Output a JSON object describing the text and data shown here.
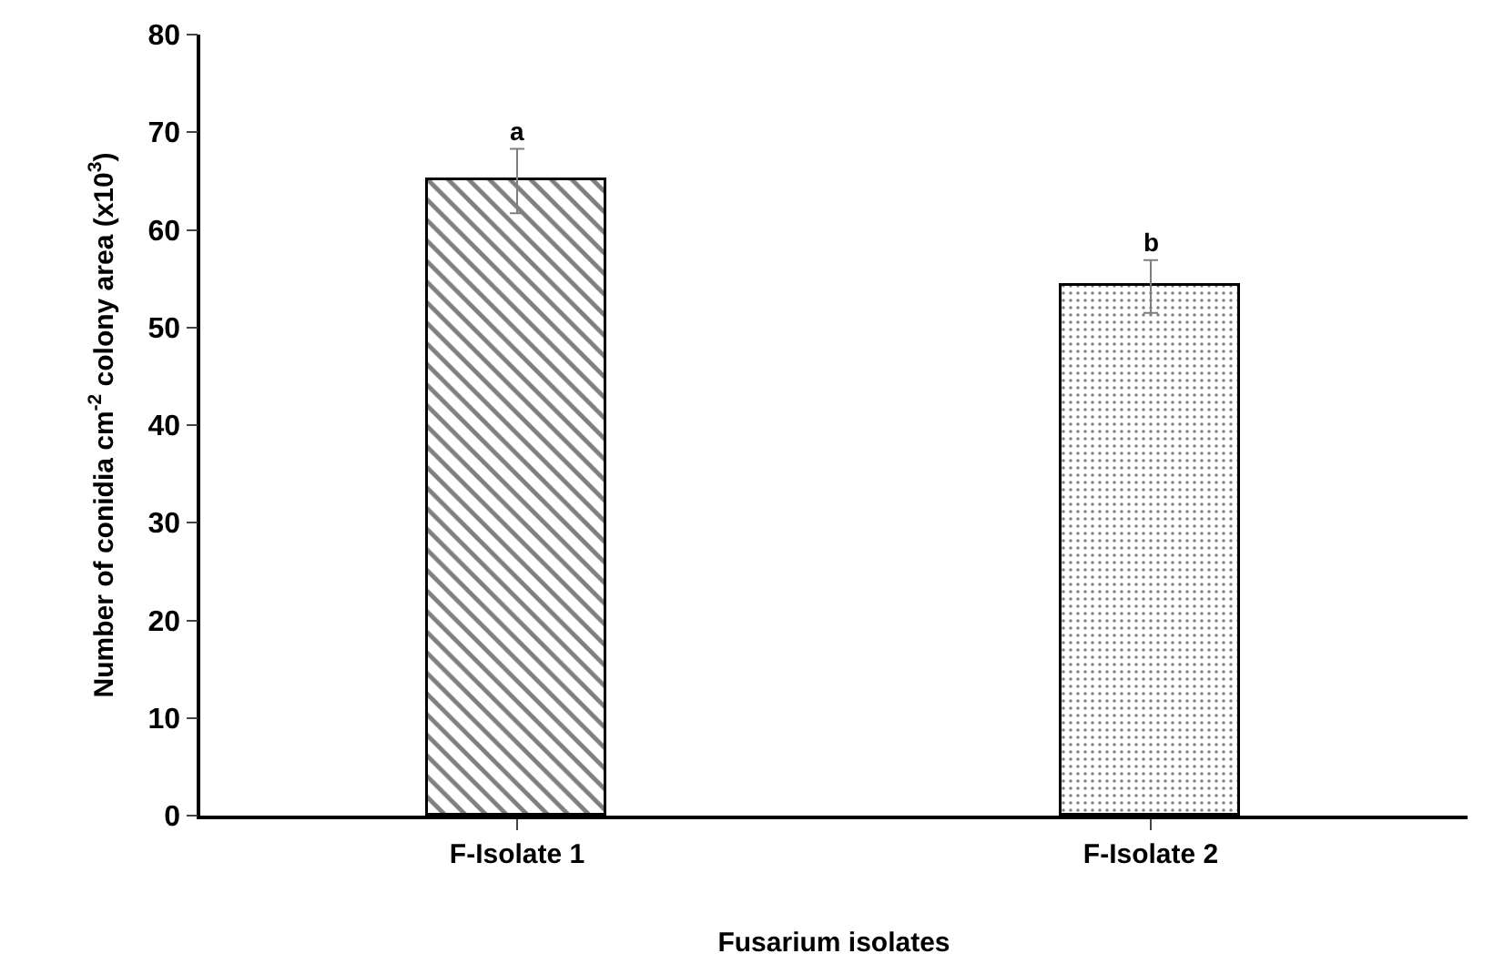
{
  "chart_data": {
    "type": "bar",
    "xlabel": "Fusarium isolates",
    "ylabel": "Number of conidia cm$^{-2}$ colony area (x10$^{3}$)",
    "categories": [
      "F-Isolate 1",
      "F-Isolate 2"
    ],
    "values": [
      65,
      54.2
    ],
    "errors": [
      3.3,
      2.7
    ],
    "ylim": [
      0,
      80
    ],
    "yticks": [
      0,
      10,
      20,
      30,
      40,
      50,
      60,
      70,
      80
    ],
    "legend": false,
    "annotations": [
      {
        "text": "a",
        "x": "F-Isolate 1",
        "y": 68.3
      },
      {
        "text": "b",
        "x": "F-Isolate 2",
        "y": 56.9
      }
    ]
  }
}
